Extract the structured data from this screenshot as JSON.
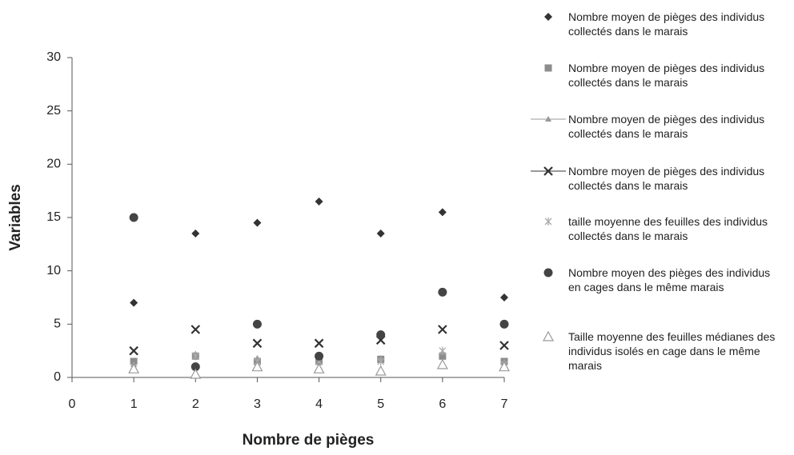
{
  "chart_data": {
    "type": "scatter",
    "x_label": "Nombre de pièges",
    "y_label": "Variables",
    "x": [
      1,
      2,
      3,
      4,
      5,
      6,
      7
    ],
    "xlim": [
      0,
      7
    ],
    "xticks": [
      0,
      1,
      2,
      3,
      4,
      5,
      6,
      7
    ],
    "ylim": [
      0,
      30
    ],
    "yticks": [
      0,
      5,
      10,
      15,
      20,
      25,
      30
    ],
    "grid": false,
    "legend": "right",
    "series": [
      {
        "name": "Nombre moyen de pièges des individus collectés dans le marais",
        "color": "#333333",
        "marker": "diamond",
        "values": [
          7,
          13.5,
          14.5,
          16.5,
          13.5,
          15.5,
          7.5
        ]
      },
      {
        "name": "Nombre moyen de pièges des individus collectés dans le marais",
        "color": "#8c8c8c",
        "marker": "square",
        "values": [
          1.5,
          2,
          1.5,
          1.5,
          1.7,
          2,
          1.5
        ]
      },
      {
        "name": "Nombre moyen de pièges des individus collectés dans le marais",
        "color": "#999999",
        "marker": "triangle-line",
        "values": [
          1.2,
          2.2,
          1.8,
          1.8,
          1.8,
          2.3,
          1.5
        ]
      },
      {
        "name": "Nombre moyen de pièges des individus collectés dans le marais",
        "color": "#333333",
        "marker": "x",
        "values": [
          2.5,
          4.5,
          3.2,
          3.2,
          3.5,
          4.5,
          3
        ]
      },
      {
        "name": "taille moyenne des feuilles des individus collectés dans le marais",
        "color": "#aaaaaa",
        "marker": "star",
        "values": [
          1,
          2,
          1.5,
          1.5,
          1.5,
          2.5,
          1.2
        ]
      },
      {
        "name": "Nombre moyen des pièges des individus en cages dans le même marais",
        "color": "#444444",
        "marker": "circle",
        "values": [
          15,
          1,
          5,
          2,
          4,
          8,
          5
        ]
      },
      {
        "name": "Taille moyenne des feuilles médianes des individus isolés en cage dans le même marais",
        "color": "#999999",
        "marker": "open-triangle",
        "values": [
          0.8,
          0.3,
          1,
          0.8,
          0.6,
          1.2,
          1
        ]
      }
    ]
  }
}
